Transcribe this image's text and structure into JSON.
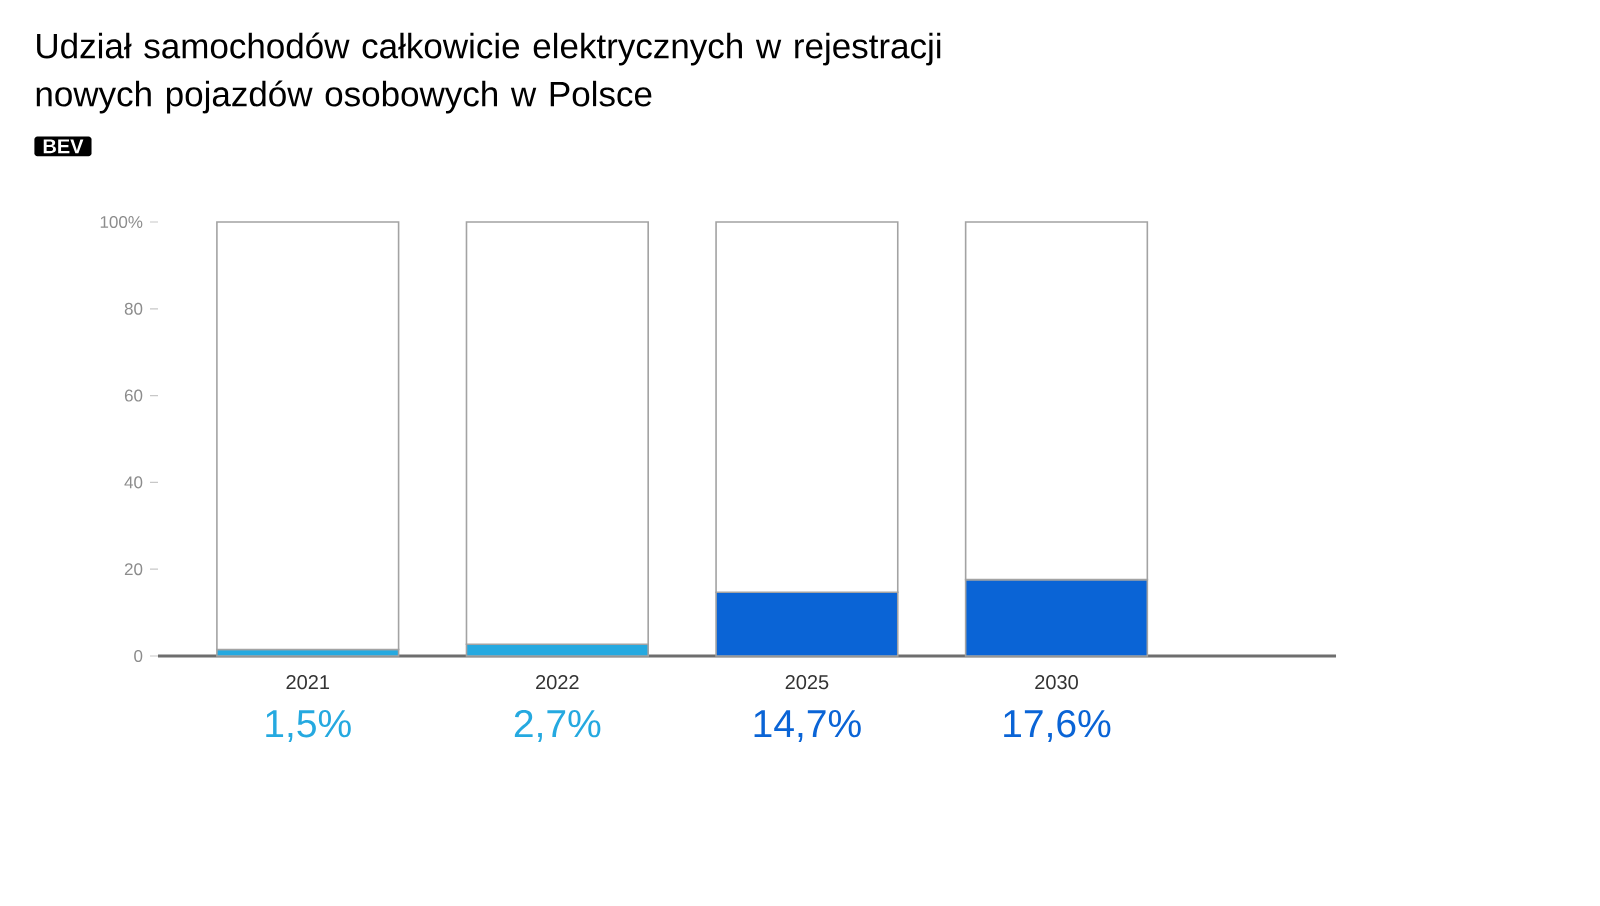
{
  "chart_data": {
    "type": "bar",
    "title": "Udział samochodów całkowicie elektrycznych w rejestracji nowych pojazdów osobowych w Polsce",
    "subtitle": "BEV",
    "categories": [
      "2021",
      "2022",
      "2025",
      "2030"
    ],
    "stacked": true,
    "series": [
      {
        "colors": [
          "#25a9e0",
          "#25a9e0",
          "#0a64d6",
          "#0a64d6"
        ],
        "values": [
          1.5,
          2.7,
          14.7,
          17.6
        ],
        "value_labels": [
          "1,5%",
          "2,7%",
          "14,7%",
          "17,6%"
        ]
      },
      {
        "color": "#ffffff",
        "values": [
          98.5,
          97.3,
          85.3,
          82.4
        ]
      }
    ],
    "ylim": [
      0,
      100
    ],
    "yticks": [
      0,
      20,
      40,
      60,
      80,
      {
        "value": 100,
        "label": "100%"
      }
    ]
  }
}
